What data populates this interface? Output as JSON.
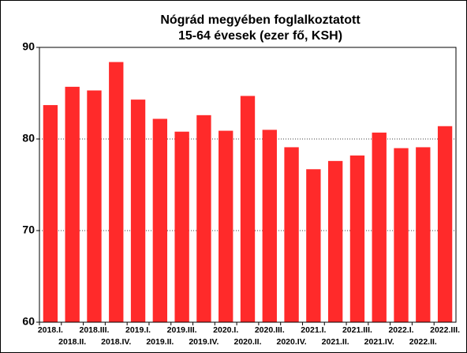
{
  "chart_data": {
    "type": "bar",
    "title": "Nógrád megyében foglalkoztatott",
    "subtitle": "15-64 évesek (ezer fő, KSH)",
    "categories": [
      "2018.I.",
      "2018.II.",
      "2018.III.",
      "2018.IV.",
      "2019.I.",
      "2019.II.",
      "2019.III.",
      "2019.IV.",
      "2020.I.",
      "2020.II.",
      "2020.III.",
      "2020.IV.",
      "2021.I.",
      "2021.II.",
      "2021.III.",
      "2021.IV.",
      "2022.I.",
      "2022.II.",
      "2022.III."
    ],
    "values": [
      83.7,
      85.7,
      85.3,
      88.4,
      84.3,
      82.2,
      80.8,
      82.6,
      80.9,
      84.7,
      81.0,
      79.1,
      76.7,
      77.6,
      78.2,
      80.7,
      79.0,
      79.1,
      81.4
    ],
    "color": "#ff2a2a",
    "ylim": [
      60,
      90
    ],
    "yticks": [
      60,
      70,
      80,
      90
    ],
    "grid": true
  }
}
